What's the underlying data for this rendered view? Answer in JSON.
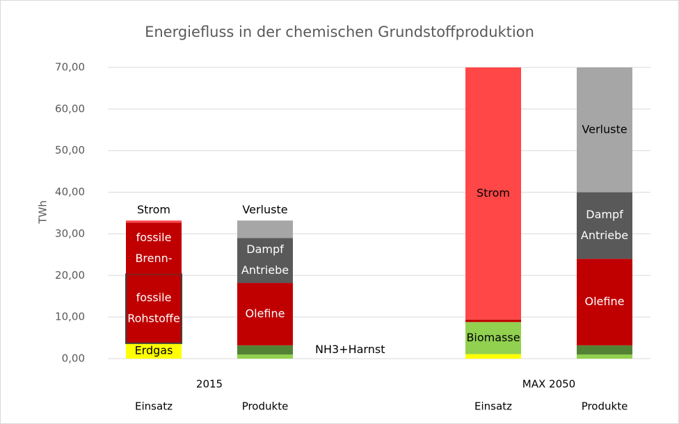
{
  "chart_data": {
    "type": "stacked_bar",
    "title": "Energiefluss in der chemischen Grundstoffproduktion",
    "y_label": "TWh",
    "groups": [
      "2015",
      "MAX 2050"
    ],
    "bars": [
      {
        "group": 0,
        "category": "Einsatz",
        "segments": [
          {
            "value": 3.7,
            "color": "#ffff00",
            "label": [
              "Erdgas"
            ],
            "label_pos": "inside",
            "label_color": "#000000"
          },
          {
            "value": 16.6,
            "color": "#c00000",
            "outline": "#404040",
            "label": [
              "fossile",
              "Rohstoffe"
            ],
            "label_pos": "inside",
            "label_color": "#ffffff"
          },
          {
            "value": 12.4,
            "color": "#c00000",
            "label": [
              "fossile",
              "Brenn-"
            ],
            "label_pos": "inside",
            "label_color": "#ffffff"
          },
          {
            "value": 0.5,
            "color": "#ff4747",
            "label": [
              "Strom"
            ],
            "label_pos": "above",
            "label_color": "#000000"
          }
        ]
      },
      {
        "group": 0,
        "category": "Produkte",
        "segments": [
          {
            "value": 1.0,
            "color": "#92d050"
          },
          {
            "value": 2.2,
            "color": "#548235",
            "label": [
              "NH3+Harnst"
            ],
            "label_pos": "right",
            "label_color": "#000000"
          },
          {
            "value": 15.0,
            "color": "#c00000",
            "label": [
              "Olefine"
            ],
            "label_pos": "inside",
            "label_color": "#ffffff"
          },
          {
            "value": 10.8,
            "color": "#595959",
            "label": [
              "Dampf",
              "Antriebe"
            ],
            "label_pos": "inside",
            "label_color": "#ffffff"
          },
          {
            "value": 4.2,
            "color": "#a6a6a6",
            "label": [
              "Verluste"
            ],
            "label_pos": "above",
            "label_color": "#000000"
          }
        ]
      },
      {
        "group": 1,
        "category": "Einsatz",
        "segments": [
          {
            "value": 1.1,
            "color": "#ffff00"
          },
          {
            "value": 7.7,
            "color": "#92d050",
            "label": [
              "Biomasse"
            ],
            "label_pos": "inside",
            "label_color": "#000000"
          },
          {
            "value": 0.6,
            "color": "#c00000"
          },
          {
            "value": 60.6,
            "color": "#ff4747",
            "label": [
              "Strom"
            ],
            "label_pos": "inside",
            "label_color": "#000000"
          }
        ]
      },
      {
        "group": 1,
        "category": "Produkte",
        "segments": [
          {
            "value": 1.0,
            "color": "#92d050"
          },
          {
            "value": 2.2,
            "color": "#548235"
          },
          {
            "value": 20.8,
            "color": "#c00000",
            "label": [
              "Olefine"
            ],
            "label_pos": "inside",
            "label_color": "#ffffff"
          },
          {
            "value": 16.0,
            "color": "#595959",
            "label": [
              "Dampf",
              "Antriebe"
            ],
            "label_pos": "inside",
            "label_color": "#ffffff"
          },
          {
            "value": 30.0,
            "color": "#a6a6a6",
            "label": [
              "Verluste"
            ],
            "label_pos": "inside",
            "label_color": "#000000"
          }
        ]
      }
    ],
    "ylim": [
      0,
      70
    ],
    "yticks": [
      {
        "value": 0,
        "label": "0,00"
      },
      {
        "value": 10,
        "label": "10,00"
      },
      {
        "value": 20,
        "label": "20,00"
      },
      {
        "value": 30,
        "label": "30,00"
      },
      {
        "value": 40,
        "label": "40,00"
      },
      {
        "value": 50,
        "label": "50,00"
      },
      {
        "value": 60,
        "label": "60,00"
      },
      {
        "value": 70,
        "label": "70,00"
      }
    ],
    "grid": true
  }
}
